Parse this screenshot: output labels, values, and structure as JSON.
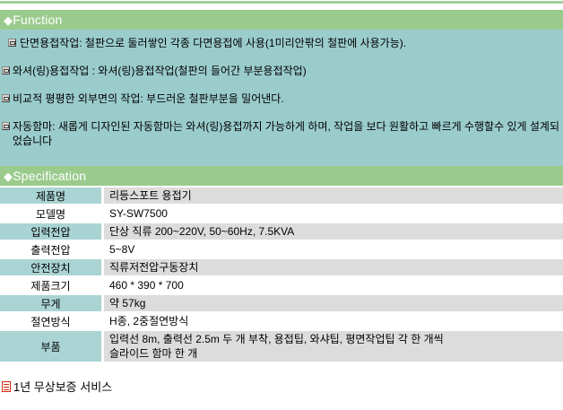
{
  "page": {
    "accent_green": "#9acb8d",
    "function_teal": "#9bcccc",
    "label_teal": "#aad3d3",
    "cell_gray": "#dcdcdc",
    "note_red": "#d42a10"
  },
  "function": {
    "diamond": "◆",
    "title": "Function",
    "items": [
      "단면용접작업: 철판으로 둘러쌓인 각종 다면용접에 사용(1미리안팎의 철판에 사용가능).",
      "와셔(링)용접작업 : 와셔(링)용접작업(철판의 들어간 부분용접작업)",
      "비교적 평평한 외부면의 작업: 부드러운 철판부분을 밀어낸다.",
      "자동함마: 새롭게 디자인된 자동함마는 와셔(링)용접까지 가능하게 하며, 작업을 보다 원활하고 빠르게 수행할수 있게 설계되었습니다"
    ]
  },
  "specification": {
    "diamond": "◆",
    "title": "Specification",
    "rows": [
      {
        "label": "제품명",
        "value": "리등스포트 용접기"
      },
      {
        "label": "모델명",
        "value": "SY-SW7500"
      },
      {
        "label": "입력전압",
        "value": "단상 직류 200~220V, 50~60Hz, 7.5KVA"
      },
      {
        "label": "출력전압",
        "value": "5~8V"
      },
      {
        "label": "안전장치",
        "value": "직류저전압구동장치"
      },
      {
        "label": "제품크기",
        "value": "460 * 390 * 700"
      },
      {
        "label": "무게",
        "value": "약 57kg"
      },
      {
        "label": "절연방식",
        "value": "H종, 2중절연방식"
      },
      {
        "label": "부품",
        "value": "입력선 8m, 출력선 2.5m 두 개 부착, 용접팁, 와샤팁, 평면작업팁 각 한 개씩\n슬라이드 함마 한 개"
      }
    ]
  },
  "footer": {
    "note": "1년 무상보증 서비스"
  }
}
